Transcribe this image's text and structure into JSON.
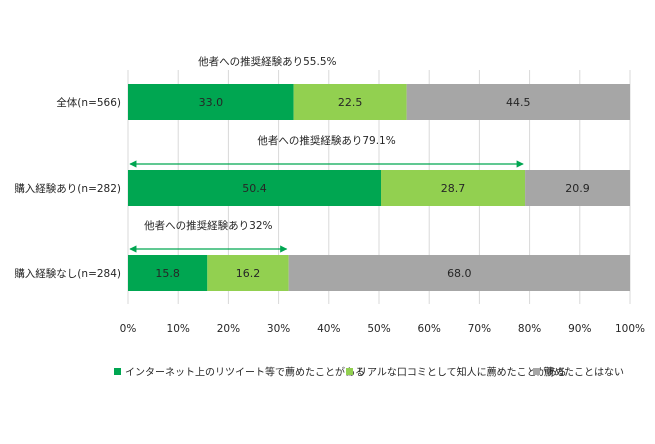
{
  "chart_data": {
    "type": "bar",
    "orientation": "horizontal",
    "stacked": true,
    "title": "",
    "xlabel": "",
    "ylabel": "",
    "xlim": [
      0,
      100
    ],
    "x_ticks": [
      0,
      10,
      20,
      30,
      40,
      50,
      60,
      70,
      80,
      90,
      100
    ],
    "x_tick_suffix": "%",
    "gridlines": true,
    "categories": [
      "全体(n=566)",
      "購入経験あり(n=282)",
      "購入経験なし(n=284)"
    ],
    "series": [
      {
        "name": "インターネット上のリツイート等で薦めたことがある",
        "color": "#00a651",
        "values": [
          33.0,
          50.4,
          15.8
        ]
      },
      {
        "name": "リアルな口コミとして知人に薦めたことがある",
        "color": "#92d050",
        "values": [
          22.5,
          28.7,
          16.2
        ]
      },
      {
        "name": "薦めたことはない",
        "color": "#a6a6a6",
        "values": [
          44.5,
          20.9,
          68.0
        ]
      }
    ],
    "annotations": [
      {
        "category_index": 0,
        "text": "他者への推奨経験あり55.5%",
        "span_to": 55.5,
        "arrow": false
      },
      {
        "category_index": 1,
        "text": "他者への推奨経験あり79.1%",
        "span_to": 79.1,
        "arrow": true
      },
      {
        "category_index": 2,
        "text": "他者への推奨経験あり32%",
        "span_to": 32.0,
        "arrow": true
      }
    ],
    "legend_position": "bottom"
  }
}
